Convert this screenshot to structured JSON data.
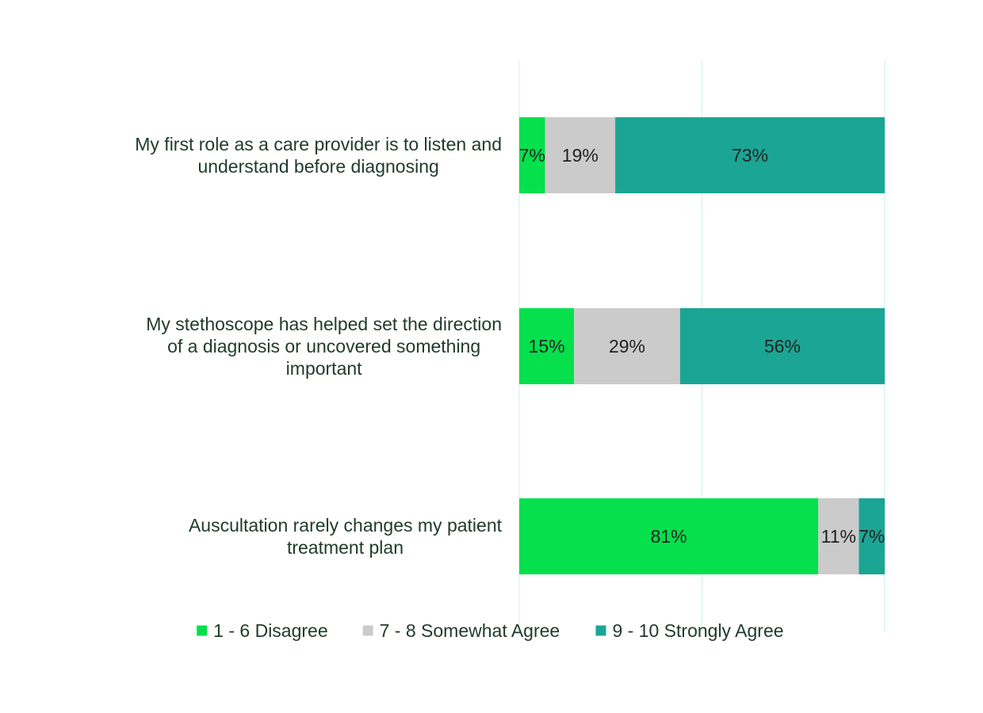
{
  "chart_data": {
    "type": "bar",
    "orientation": "horizontal",
    "stacked": true,
    "percent_stacked": true,
    "title": "",
    "xlabel": "",
    "ylabel": "",
    "xlim": [
      0,
      100
    ],
    "grid": true,
    "legend_position": "bottom",
    "categories": [
      [
        "My first role as a care provider is to listen and",
        "understand before diagnosing"
      ],
      [
        "My stethoscope has helped set the direction",
        "of a diagnosis or uncovered something",
        "important"
      ],
      [
        "Auscultation rarely changes my patient",
        "treatment plan"
      ]
    ],
    "series": [
      {
        "name": "1 - 6 Disagree",
        "color": "#05e04c",
        "values": [
          7,
          15,
          81
        ],
        "labels": [
          "7%",
          "15%",
          "81%"
        ]
      },
      {
        "name": "7 - 8 Somewhat Agree",
        "color": "#cbcbcb",
        "values": [
          19,
          29,
          11
        ],
        "labels": [
          "19%",
          "29%",
          "11%"
        ]
      },
      {
        "name": "9 - 10 Strongly Agree",
        "color": "#1ba594",
        "values": [
          73,
          56,
          7
        ],
        "labels": [
          "73%",
          "56%",
          "7%"
        ]
      }
    ]
  }
}
